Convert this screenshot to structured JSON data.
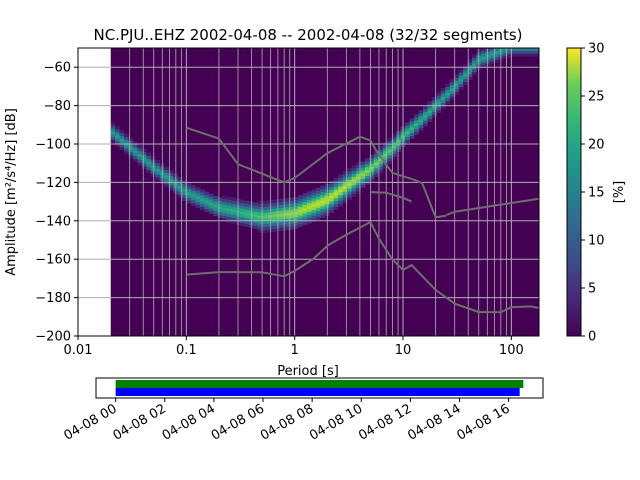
{
  "chart_data": [
    {
      "type": "heatmap",
      "title": "NC.PJU..EHZ   2002-04-08 -- 2002-04-08  (32/32 segments)",
      "xlabel": "Period [s]",
      "ylabel": "Amplitude [m²/s⁴/Hz] [dB]",
      "xscale": "log",
      "xlim": [
        0.01,
        180
      ],
      "ylim": [
        -200,
        -50
      ],
      "grid": true,
      "x_ticks": [
        0.01,
        0.1,
        1,
        10,
        100
      ],
      "x_tick_labels": [
        "0.01",
        "0.1",
        "1",
        "10",
        "100"
      ],
      "y_ticks": [
        -200,
        -180,
        -160,
        -140,
        -120,
        -100,
        -80,
        -60
      ],
      "y_tick_labels": [
        "−200",
        "−180",
        "−160",
        "−140",
        "−120",
        "−100",
        "−80",
        "−60"
      ],
      "data_period_range": [
        0.02,
        180
      ],
      "colorbar": {
        "label": "[%]",
        "range": [
          0,
          30
        ],
        "ticks": [
          0,
          5,
          10,
          15,
          20,
          25,
          30
        ],
        "tick_labels": [
          "0",
          "5",
          "10",
          "15",
          "20",
          "25",
          "30"
        ],
        "colormap": "viridis"
      },
      "psd_mode": {
        "name": "",
        "period": [
          0.02,
          0.05,
          0.1,
          0.2,
          0.5,
          1,
          2,
          5,
          8,
          10,
          15,
          20,
          30,
          50,
          100
        ],
        "db": [
          -93,
          -112,
          -125,
          -133,
          -138,
          -136,
          -129,
          -113,
          -102,
          -96,
          -87,
          -80,
          -70,
          -56,
          -49
        ]
      },
      "series": [
        {
          "name": "",
          "period": [
            0.1,
            0.2,
            0.3,
            0.8,
            1.0,
            2.0,
            4.0,
            5.0,
            6.0,
            8.0,
            10.0,
            12.0,
            15.0,
            20.0,
            25.0
          ],
          "db": [
            -91.5,
            -97.2,
            -110.5,
            -120.0,
            -117.7,
            -104.8,
            -96.2,
            -98.2,
            -105.8,
            -115.0,
            -116.8,
            -118.1,
            -120.3,
            -138.2,
            -137.4
          ],
          "color": "#6e6e6e"
        },
        {
          "name": "",
          "period": [
            180,
            30,
            25
          ],
          "db": [
            -128.5,
            -135.3,
            -137.0
          ],
          "color": "#6e6e6e"
        },
        {
          "name": "",
          "period": [
            0.1,
            0.2,
            0.3,
            0.5,
            0.8,
            1.0,
            1.5,
            2.0,
            3.0,
            5.0,
            6.0,
            7.0,
            8.0,
            10.0,
            12.0,
            15.0,
            20.0,
            30.0,
            50.0,
            80.0,
            100.0,
            150.0,
            180.0
          ],
          "db": [
            -168.0,
            -166.7,
            -166.7,
            -166.8,
            -168.9,
            -166.1,
            -159.7,
            -153.0,
            -147.2,
            -140.7,
            -149.4,
            -155.1,
            -160.1,
            -165.7,
            -163.0,
            -168.7,
            -176.0,
            -183.2,
            -187.5,
            -187.6,
            -185.0,
            -184.6,
            -185.4
          ],
          "color": "#6e6e6e"
        },
        {
          "name": "",
          "period": [
            5,
            7,
            10,
            12
          ],
          "db": [
            -125.0,
            -125.4,
            -128.0,
            -130.0
          ],
          "color": "#6e6e6e"
        }
      ]
    },
    {
      "type": "timeline",
      "xlabel": "",
      "x_tick_labels": [
        "04-08 00",
        "04-08 02",
        "04-08 04",
        "04-08 06",
        "04-08 08",
        "04-08 10",
        "04-08 12",
        "04-08 14",
        "04-08 16"
      ],
      "x_ticks_hours": [
        0,
        2,
        4,
        6,
        8,
        10,
        12,
        14,
        16
      ],
      "xlim_hours": [
        -0.8,
        17.4
      ],
      "bars": [
        {
          "name": "",
          "start_hour": 0,
          "end_hour": 16.6,
          "color": "#008000"
        },
        {
          "name": "",
          "start_hour": 0,
          "end_hour": 16.45,
          "color": "#0000ff"
        }
      ]
    }
  ]
}
